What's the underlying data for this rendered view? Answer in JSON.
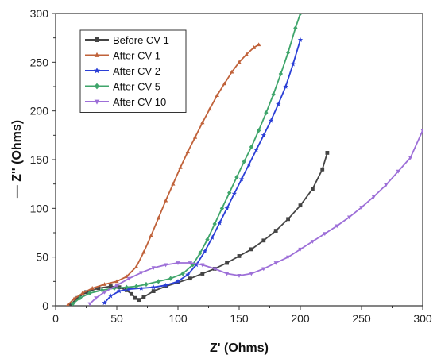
{
  "chart_data": {
    "type": "line",
    "title": "",
    "xlabel": "Z' (Ohms)",
    "ylabel": "— Z'' (Ohms)",
    "xlim": [
      0,
      300
    ],
    "ylim": [
      0,
      300
    ],
    "xticks": [
      0,
      50,
      100,
      150,
      200,
      250,
      300
    ],
    "yticks": [
      0,
      50,
      100,
      150,
      200,
      250,
      300
    ],
    "grid": false,
    "legend_position": "top-left",
    "series": [
      {
        "name": "Before CV 1",
        "color": "#444444",
        "marker": "square",
        "x": [
          12,
          18,
          25,
          35,
          45,
          52,
          58,
          62,
          65,
          68,
          72,
          80,
          90,
          100,
          110,
          120,
          130,
          140,
          150,
          160,
          170,
          180,
          190,
          200,
          210,
          218,
          222
        ],
        "y": [
          1,
          8,
          14,
          18,
          20,
          19,
          16,
          12,
          8,
          6,
          9,
          15,
          20,
          24,
          28,
          33,
          38,
          44,
          51,
          58,
          67,
          77,
          89,
          103,
          120,
          140,
          157
        ]
      },
      {
        "name": "After CV 1",
        "color": "#c0623a",
        "marker": "triangle",
        "x": [
          10,
          15,
          22,
          30,
          40,
          50,
          58,
          66,
          72,
          78,
          84,
          90,
          96,
          102,
          108,
          114,
          120,
          126,
          132,
          138,
          144,
          150,
          156,
          162,
          166
        ],
        "y": [
          1,
          7,
          13,
          18,
          22,
          25,
          30,
          40,
          55,
          72,
          90,
          108,
          125,
          142,
          158,
          173,
          188,
          202,
          216,
          228,
          240,
          250,
          258,
          265,
          268
        ]
      },
      {
        "name": "After CV 2",
        "color": "#2b3fd6",
        "marker": "star",
        "x": [
          40,
          45,
          52,
          60,
          70,
          80,
          90,
          100,
          108,
          115,
          122,
          128,
          134,
          140,
          146,
          152,
          158,
          164,
          170,
          176,
          182,
          188,
          194,
          200
        ],
        "y": [
          3,
          10,
          15,
          17,
          18,
          19,
          21,
          25,
          32,
          42,
          56,
          70,
          85,
          100,
          115,
          130,
          145,
          160,
          175,
          190,
          207,
          225,
          248,
          273
        ]
      },
      {
        "name": "After CV 5",
        "color": "#3fa56b",
        "marker": "diamond",
        "x": [
          14,
          20,
          28,
          38,
          48,
          58,
          66,
          74,
          84,
          94,
          104,
          112,
          118,
          124,
          130,
          136,
          142,
          148,
          154,
          160,
          166,
          172,
          178,
          184,
          190,
          196,
          200
        ],
        "y": [
          2,
          8,
          13,
          16,
          18,
          19,
          20,
          22,
          25,
          28,
          33,
          42,
          54,
          68,
          84,
          100,
          116,
          132,
          148,
          163,
          180,
          198,
          217,
          238,
          260,
          285,
          300
        ]
      },
      {
        "name": "After CV 10",
        "color": "#9d6fd8",
        "marker": "triangle-down",
        "x": [
          28,
          33,
          40,
          50,
          60,
          70,
          80,
          90,
          100,
          110,
          120,
          130,
          140,
          150,
          160,
          170,
          180,
          190,
          200,
          210,
          220,
          230,
          240,
          250,
          260,
          270,
          280,
          290,
          300
        ],
        "y": [
          2,
          8,
          14,
          21,
          28,
          34,
          39,
          42,
          44,
          44,
          42,
          38,
          33,
          31,
          33,
          38,
          44,
          50,
          58,
          66,
          74,
          82,
          91,
          101,
          112,
          124,
          138,
          152,
          180
        ]
      }
    ]
  }
}
